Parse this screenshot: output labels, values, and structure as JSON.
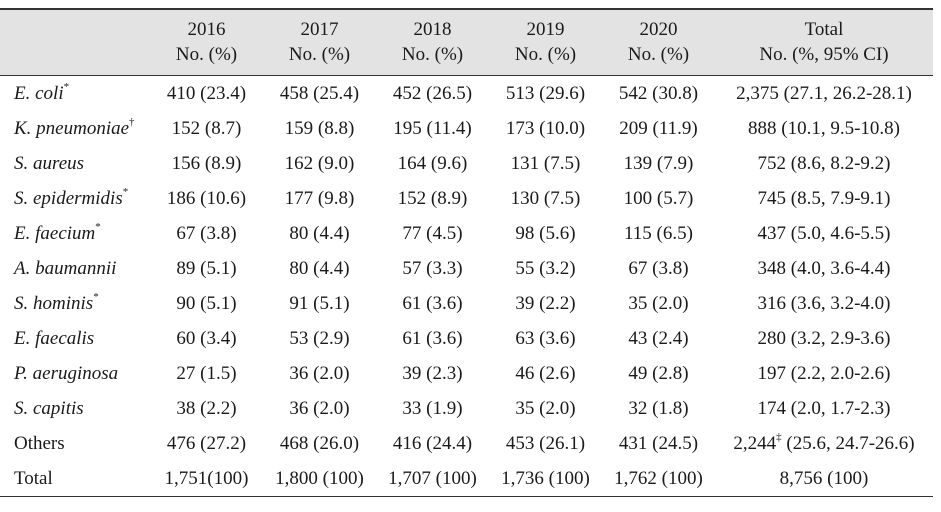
{
  "table": {
    "headers": [
      {
        "line1": "",
        "line2": ""
      },
      {
        "line1": "2016",
        "line2": "No. (%)"
      },
      {
        "line1": "2017",
        "line2": "No. (%)"
      },
      {
        "line1": "2018",
        "line2": "No. (%)"
      },
      {
        "line1": "2019",
        "line2": "No. (%)"
      },
      {
        "line1": "2020",
        "line2": "No. (%)"
      },
      {
        "line1": "Total",
        "line2": "No. (%, 95% CI)"
      }
    ],
    "rows": [
      {
        "name": "E. coli",
        "italic": true,
        "mark": "*",
        "cells": [
          "410 (23.4)",
          "458 (25.4)",
          "452 (26.5)",
          "513 (29.6)",
          "542 (30.8)"
        ],
        "total": "2,375 (27.1, 26.2-28.1)",
        "total_mark": ""
      },
      {
        "name": "K. pneumoniae",
        "italic": true,
        "mark": "†",
        "cells": [
          "152 (8.7)",
          "159 (8.8)",
          "195 (11.4)",
          "173 (10.0)",
          "209 (11.9)"
        ],
        "total": "888 (10.1, 9.5-10.8)",
        "total_mark": ""
      },
      {
        "name": "S. aureus",
        "italic": true,
        "mark": "",
        "cells": [
          "156 (8.9)",
          "162 (9.0)",
          "164 (9.6)",
          "131 (7.5)",
          "139 (7.9)"
        ],
        "total": "752 (8.6, 8.2-9.2)",
        "total_mark": ""
      },
      {
        "name": "S. epidermidis",
        "italic": true,
        "mark": "*",
        "cells": [
          "186 (10.6)",
          "177 (9.8)",
          "152 (8.9)",
          "130 (7.5)",
          "100 (5.7)"
        ],
        "total": "745 (8.5, 7.9-9.1)",
        "total_mark": ""
      },
      {
        "name": "E. faecium",
        "italic": true,
        "mark": "*",
        "cells": [
          "67 (3.8)",
          "80 (4.4)",
          "77 (4.5)",
          "98 (5.6)",
          "115 (6.5)"
        ],
        "total": "437 (5.0, 4.6-5.5)",
        "total_mark": ""
      },
      {
        "name": "A. baumannii",
        "italic": true,
        "mark": "",
        "cells": [
          "89 (5.1)",
          "80 (4.4)",
          "57 (3.3)",
          "55 (3.2)",
          "67 (3.8)"
        ],
        "total": "348 (4.0, 3.6-4.4)",
        "total_mark": ""
      },
      {
        "name": "S. hominis",
        "italic": true,
        "mark": "*",
        "cells": [
          "90 (5.1)",
          "91 (5.1)",
          "61 (3.6)",
          "39 (2.2)",
          "35 (2.0)"
        ],
        "total": "316 (3.6, 3.2-4.0)",
        "total_mark": ""
      },
      {
        "name": "E. faecalis",
        "italic": true,
        "mark": "",
        "cells": [
          "60 (3.4)",
          "53 (2.9)",
          "61 (3.6)",
          "63 (3.6)",
          "43 (2.4)"
        ],
        "total": "280 (3.2, 2.9-3.6)",
        "total_mark": ""
      },
      {
        "name": "P. aeruginosa",
        "italic": true,
        "mark": "",
        "cells": [
          "27 (1.5)",
          "36 (2.0)",
          "39 (2.3)",
          "46 (2.6)",
          "49 (2.8)"
        ],
        "total": "197 (2.2, 2.0-2.6)",
        "total_mark": ""
      },
      {
        "name": "S. capitis",
        "italic": true,
        "mark": "",
        "cells": [
          "38 (2.2)",
          "36 (2.0)",
          "33 (1.9)",
          "35 (2.0)",
          "32 (1.8)"
        ],
        "total": "174 (2.0, 1.7-2.3)",
        "total_mark": ""
      },
      {
        "name": "Others",
        "italic": false,
        "mark": "",
        "cells": [
          "476 (27.2)",
          "468 (26.0)",
          "416 (24.4)",
          "453 (26.1)",
          "431 (24.5)"
        ],
        "total": "2,244",
        "total_mark": "‡",
        "total_rest": " (25.6, 24.7-26.6)"
      },
      {
        "name": "Total",
        "italic": false,
        "mark": "",
        "cells": [
          "1,751(100)",
          "1,800 (100)",
          "1,707 (100)",
          "1,736 (100)",
          "1,762 (100)"
        ],
        "total": "8,756 (100)",
        "total_mark": ""
      }
    ]
  }
}
